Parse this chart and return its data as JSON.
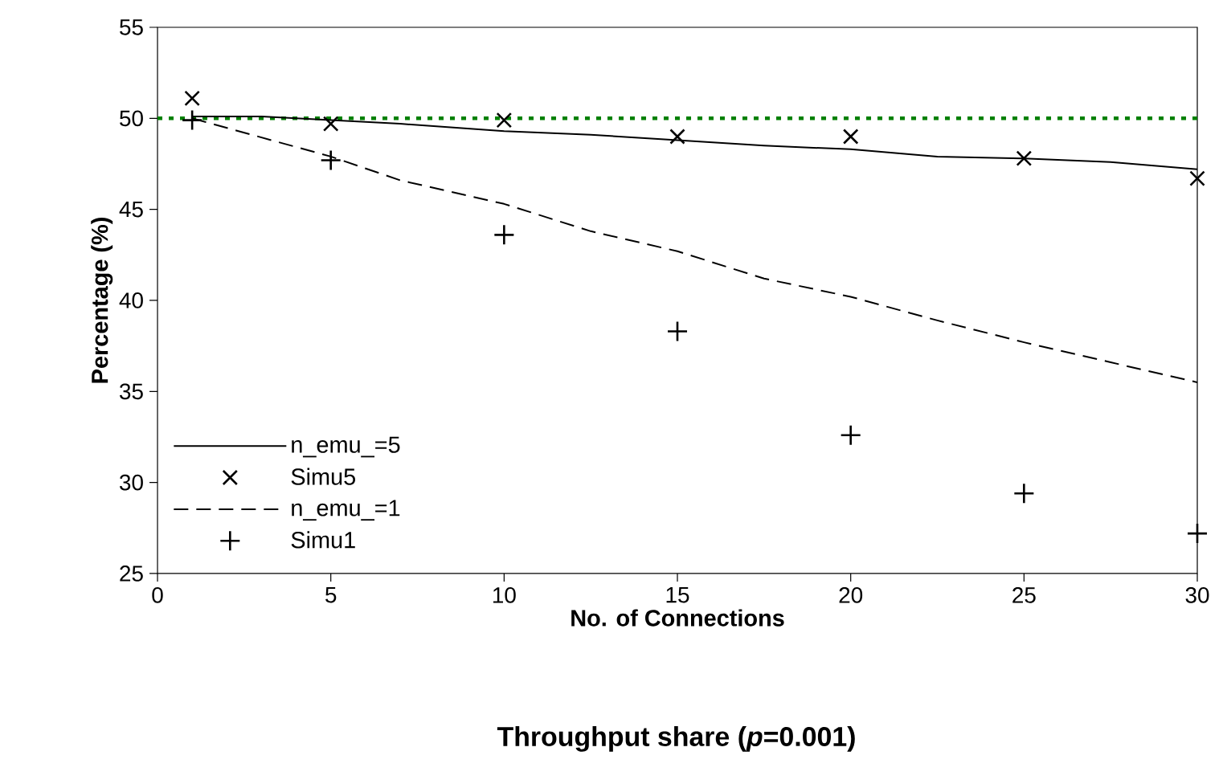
{
  "chart_data": {
    "type": "line",
    "title": "Throughput share (*p*=0.001)",
    "xlabel": "No. of Connections",
    "ylabel": "Percentage (%)",
    "xlim": [
      0,
      30
    ],
    "ylim": [
      25,
      55
    ],
    "xticks": [
      0,
      5,
      10,
      15,
      20,
      25,
      30
    ],
    "yticks": [
      25,
      30,
      35,
      40,
      45,
      50,
      55
    ],
    "grid": false,
    "legend": "bottom left",
    "series": [
      {
        "name": "n_emu_=5",
        "color": "#000000",
        "line_style": "solid",
        "marker": "none",
        "x": [
          1,
          3,
          5,
          7,
          10,
          12.5,
          15,
          17.5,
          20,
          22.5,
          25,
          27.5,
          30
        ],
        "values": [
          50.1,
          50.1,
          49.9,
          49.7,
          49.3,
          49.1,
          48.8,
          48.5,
          48.3,
          47.9,
          47.8,
          47.6,
          47.2
        ]
      },
      {
        "name": "Simu5",
        "type": "scatter",
        "color": "#000000",
        "marker": "cross",
        "x": [
          1,
          5,
          10,
          15,
          20,
          25,
          30
        ],
        "values": [
          51.1,
          49.7,
          49.9,
          49.0,
          49.0,
          47.8,
          46.7
        ]
      },
      {
        "name": "n_emu_=1",
        "color": "#000000",
        "line_style": "dashed",
        "marker": "none",
        "x": [
          1,
          5,
          7,
          10,
          12.5,
          15,
          17.5,
          20,
          22.5,
          25,
          27.5,
          30
        ],
        "values": [
          50.0,
          47.9,
          46.6,
          45.3,
          43.8,
          42.7,
          41.2,
          40.2,
          38.9,
          37.7,
          36.6,
          35.5
        ]
      },
      {
        "name": "Simu1",
        "type": "scatter",
        "color": "#000000",
        "marker": "plus",
        "x": [
          1,
          5,
          10,
          15,
          20,
          25,
          30
        ],
        "values": [
          49.9,
          47.7,
          43.6,
          38.3,
          32.6,
          29.4,
          27.2
        ]
      }
    ],
    "ref_lines": [
      {
        "axis": "y",
        "value": 50,
        "color": "#008000",
        "line_style": "dotted"
      }
    ]
  }
}
